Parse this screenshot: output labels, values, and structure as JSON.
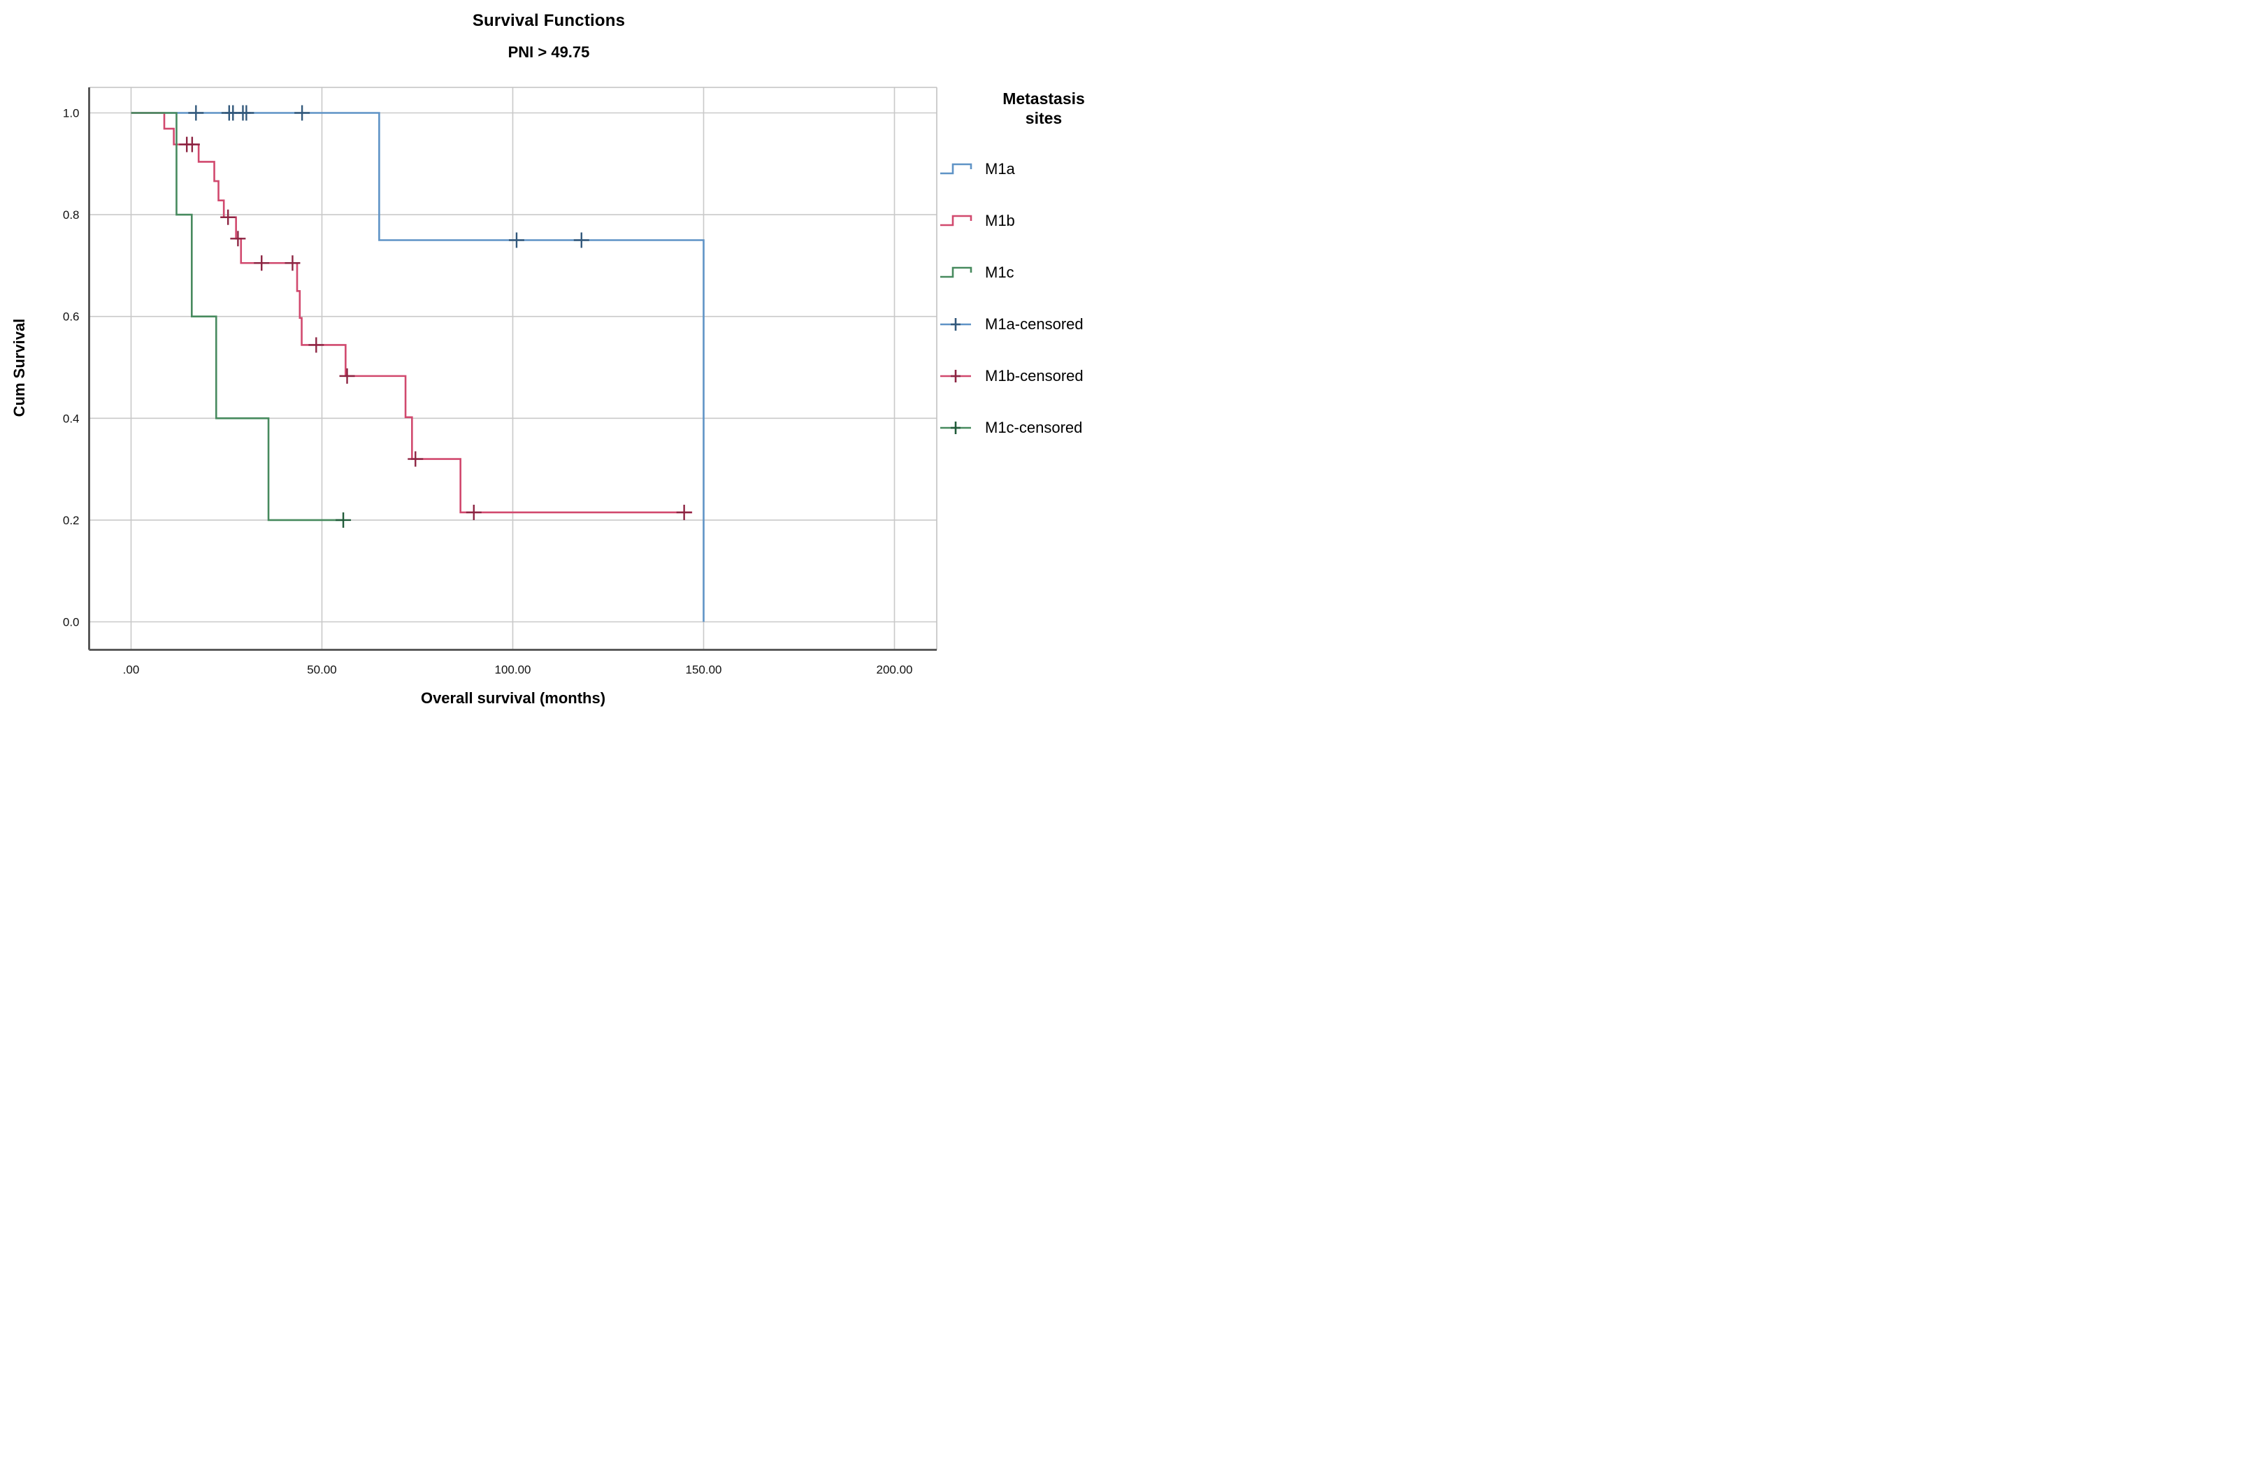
{
  "title": "Survival Functions",
  "subtitle": "PNI > 49.75",
  "axes": {
    "x": {
      "title": "Overall survival (months)",
      "tick_labels": [
        ".00",
        "50.00",
        "100.00",
        "150.00",
        "200.00"
      ],
      "tick_values": [
        0,
        50,
        100,
        150,
        200
      ]
    },
    "y": {
      "title": "Cum Survival",
      "tick_labels": [
        "0.0",
        "0.2",
        "0.4",
        "0.6",
        "0.8",
        "1.0"
      ],
      "tick_values": [
        0,
        0.2,
        0.4,
        0.6,
        0.8,
        1.0
      ]
    }
  },
  "legend": {
    "title_lines": [
      "Metastasis",
      "sites"
    ],
    "items": [
      {
        "label": "M1a",
        "type": "step",
        "series": 0
      },
      {
        "label": "M1b",
        "type": "step",
        "series": 1
      },
      {
        "label": "M1c",
        "type": "step",
        "series": 2
      },
      {
        "label": "M1a-censored",
        "type": "censored",
        "series": 0
      },
      {
        "label": "M1b-censored",
        "type": "censored",
        "series": 1
      },
      {
        "label": "M1c-censored",
        "type": "censored",
        "series": 2
      }
    ]
  },
  "chart_data": {
    "type": "km_step",
    "title": "Survival Functions",
    "subtitle": "PNI > 49.75",
    "xlabel": "Overall survival (months)",
    "ylabel": "Cum Survival",
    "xlim": [
      -11,
      211
    ],
    "ylim": [
      -0.055,
      1.05
    ],
    "x_gridlines": [
      0,
      50,
      100,
      150,
      200
    ],
    "y_gridlines": [
      0,
      0.2,
      0.4,
      0.6,
      0.8,
      1.0
    ],
    "grid_color": "#c9c9c9",
    "frame_dark_color": "#4f4f4f",
    "frame_light_color": "#c2c2c2",
    "series": [
      {
        "name": "M1a",
        "color": "#5f93c6",
        "censor_color": "#32587b",
        "start": [
          0,
          1.0
        ],
        "events": [
          [
            65,
            0.75
          ],
          [
            150,
            0.0
          ]
        ],
        "end_month": 150,
        "censored": [
          [
            17,
            1.0
          ],
          [
            25.7,
            1.0
          ],
          [
            26.7,
            1.0
          ],
          [
            29.3,
            1.0
          ],
          [
            30.2,
            1.0
          ],
          [
            44.8,
            1.0
          ],
          [
            101,
            0.75
          ],
          [
            118,
            0.75
          ]
        ]
      },
      {
        "name": "M1b",
        "color": "#d1496e",
        "censor_color": "#8d2442",
        "start": [
          0,
          1.0
        ],
        "events": [
          [
            8.7,
            0.969
          ],
          [
            11.2,
            0.938
          ],
          [
            17.7,
            0.904
          ],
          [
            21.8,
            0.866
          ],
          [
            22.9,
            0.828
          ],
          [
            24.3,
            0.795
          ],
          [
            27.5,
            0.753
          ],
          [
            28.8,
            0.705
          ],
          [
            43.5,
            0.65
          ],
          [
            44.2,
            0.597
          ],
          [
            44.7,
            0.544
          ],
          [
            56.2,
            0.483
          ],
          [
            71.9,
            0.402
          ],
          [
            73.6,
            0.32
          ],
          [
            86.3,
            0.215
          ]
        ],
        "end_month": 147,
        "censored": [
          [
            14.6,
            0.938
          ],
          [
            16.0,
            0.938
          ],
          [
            25.4,
            0.795
          ],
          [
            28.0,
            0.753
          ],
          [
            34.2,
            0.705
          ],
          [
            42.3,
            0.705
          ],
          [
            48.5,
            0.544
          ],
          [
            56.6,
            0.483
          ],
          [
            74.5,
            0.32
          ],
          [
            89.8,
            0.215
          ],
          [
            144.9,
            0.215
          ]
        ]
      },
      {
        "name": "M1c",
        "color": "#478a5e",
        "censor_color": "#205b39",
        "start": [
          0,
          1.0
        ],
        "events": [
          [
            11.9,
            0.8
          ],
          [
            15.9,
            0.6
          ],
          [
            22.3,
            0.4
          ],
          [
            36.0,
            0.2
          ]
        ],
        "end_month": 55.6,
        "censored": [
          [
            55.6,
            0.2
          ]
        ]
      }
    ]
  }
}
